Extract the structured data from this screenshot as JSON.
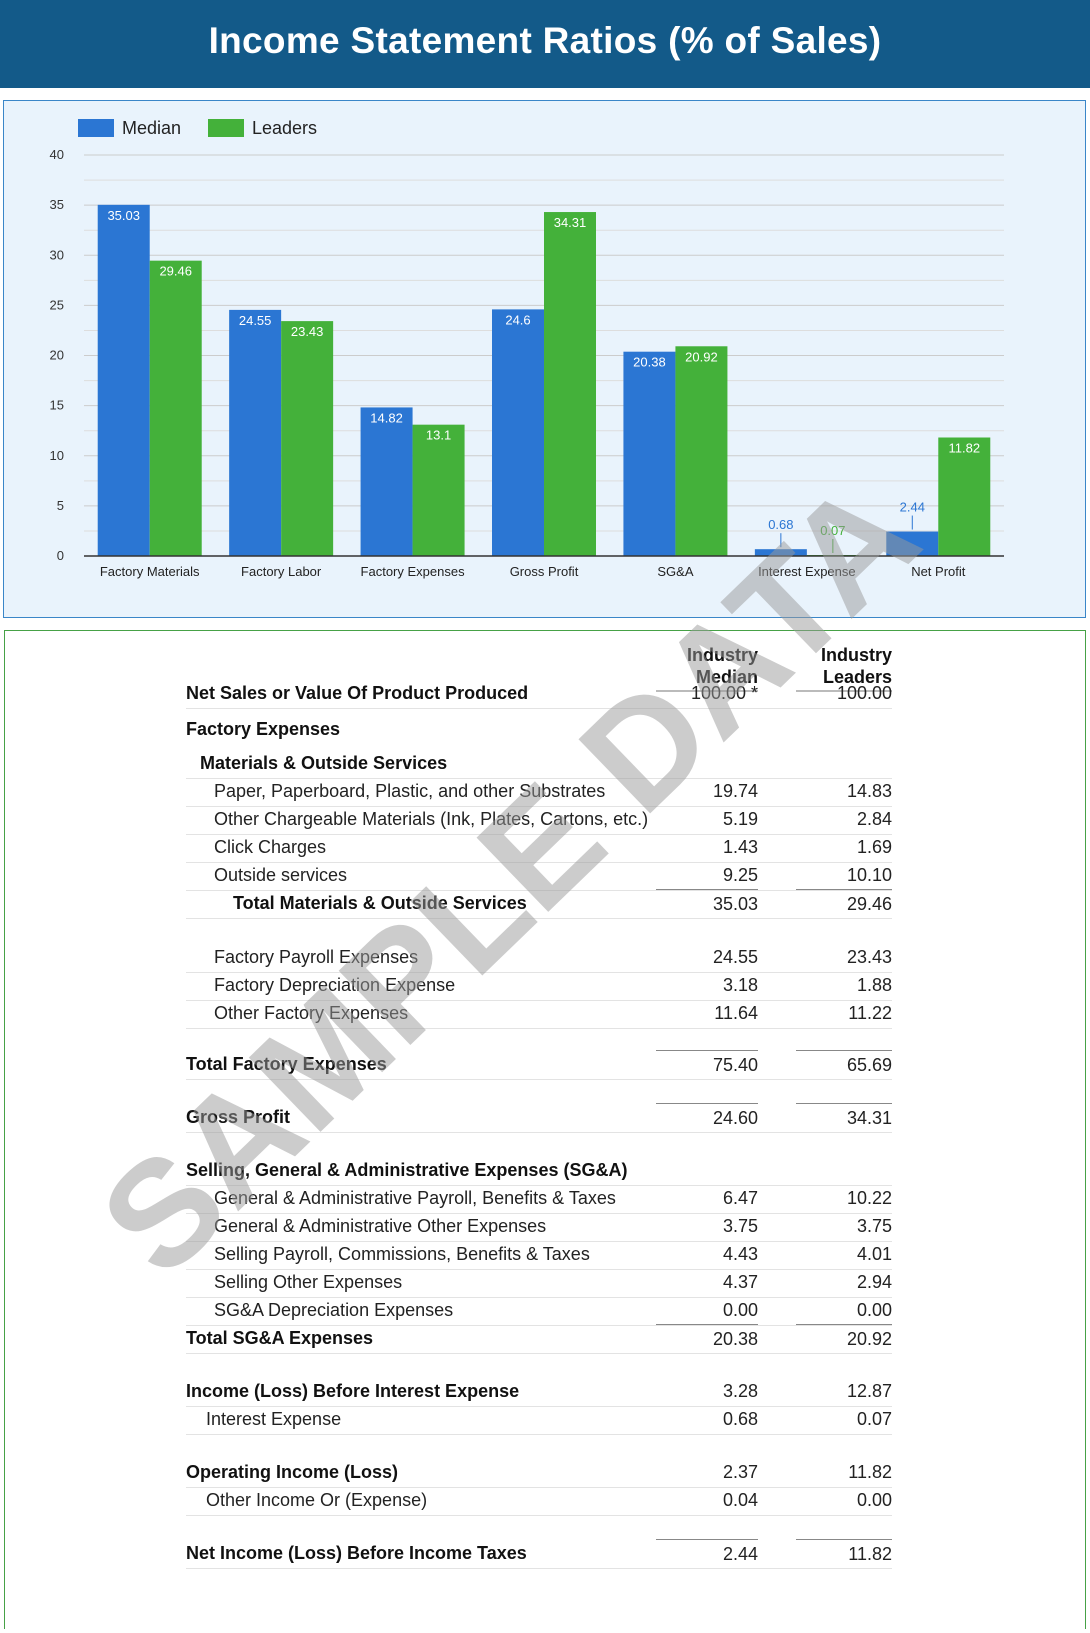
{
  "page_title": "Income Statement Ratios (% of Sales)",
  "colors": {
    "header_bg": "#135a89",
    "median": "#2b76d3",
    "leaders": "#44b13a",
    "watermark": "#9a9a9a"
  },
  "watermark": "SAMPLE DATA",
  "chart_data": {
    "type": "bar",
    "title": "",
    "xlabel": "",
    "ylabel": "",
    "ylim": [
      0,
      40
    ],
    "yticks": [
      0,
      5,
      10,
      15,
      20,
      25,
      30,
      35,
      40
    ],
    "grid": true,
    "legend_position": "top-left",
    "categories": [
      "Factory Materials",
      "Factory Labor",
      "Factory Expenses",
      "Gross Profit",
      "SG&A",
      "Interest Expense",
      "Net Profit"
    ],
    "series": [
      {
        "name": "Median",
        "values": [
          35.03,
          24.55,
          14.82,
          24.6,
          20.38,
          0.68,
          2.44
        ]
      },
      {
        "name": "Leaders",
        "values": [
          29.46,
          23.43,
          13.1,
          34.31,
          20.92,
          0.07,
          11.82
        ]
      }
    ]
  },
  "table": {
    "col_median": [
      "Industry",
      "Median"
    ],
    "col_leaders": [
      "Industry",
      "Leaders"
    ],
    "rows": [
      {
        "label": "Net Sales or Value Of Product Produced",
        "median": "100.00 *",
        "leaders": "100.00"
      },
      {
        "label": "Factory Expenses",
        "median": "",
        "leaders": ""
      },
      {
        "label": "Materials & Outside Services",
        "median": "",
        "leaders": ""
      },
      {
        "label": "Paper, Paperboard, Plastic, and other Substrates",
        "median": "19.74",
        "leaders": "14.83"
      },
      {
        "label": "Other Chargeable Materials (Ink, Plates, Cartons, etc.)",
        "median": "5.19",
        "leaders": "2.84"
      },
      {
        "label": "Click Charges",
        "median": "1.43",
        "leaders": "1.69"
      },
      {
        "label": "Outside services",
        "median": "9.25",
        "leaders": "10.10"
      },
      {
        "label": "Total Materials & Outside Services",
        "median": "35.03",
        "leaders": "29.46"
      },
      {
        "label": "Factory Payroll Expenses",
        "median": "24.55",
        "leaders": "23.43"
      },
      {
        "label": "Factory Depreciation Expense",
        "median": "3.18",
        "leaders": "1.88"
      },
      {
        "label": "Other Factory Expenses",
        "median": "11.64",
        "leaders": "11.22"
      },
      {
        "label": "Total Factory Expenses",
        "median": "75.40",
        "leaders": "65.69"
      },
      {
        "label": "Gross Profit",
        "median": "24.60",
        "leaders": "34.31"
      },
      {
        "label": "Selling, General & Administrative Expenses (SG&A)",
        "median": "",
        "leaders": ""
      },
      {
        "label": "General & Administrative Payroll, Benefits & Taxes",
        "median": "6.47",
        "leaders": "10.22"
      },
      {
        "label": "General & Administrative Other Expenses",
        "median": "3.75",
        "leaders": "3.75"
      },
      {
        "label": "Selling Payroll, Commissions, Benefits & Taxes",
        "median": "4.43",
        "leaders": "4.01"
      },
      {
        "label": "Selling Other Expenses",
        "median": "4.37",
        "leaders": "2.94"
      },
      {
        "label": "SG&A Depreciation Expenses",
        "median": "0.00",
        "leaders": "0.00"
      },
      {
        "label": "Total SG&A Expenses",
        "median": "20.38",
        "leaders": "20.92"
      },
      {
        "label": "Income (Loss) Before Interest Expense",
        "median": "3.28",
        "leaders": "12.87"
      },
      {
        "label": "Interest Expense",
        "median": "0.68",
        "leaders": "0.07"
      },
      {
        "label": "Operating Income (Loss)",
        "median": "2.37",
        "leaders": "11.82"
      },
      {
        "label": "Other Income Or (Expense)",
        "median": "0.04",
        "leaders": "0.00"
      },
      {
        "label": "Net Income (Loss) Before Income Taxes",
        "median": "2.44",
        "leaders": "11.82"
      }
    ]
  }
}
